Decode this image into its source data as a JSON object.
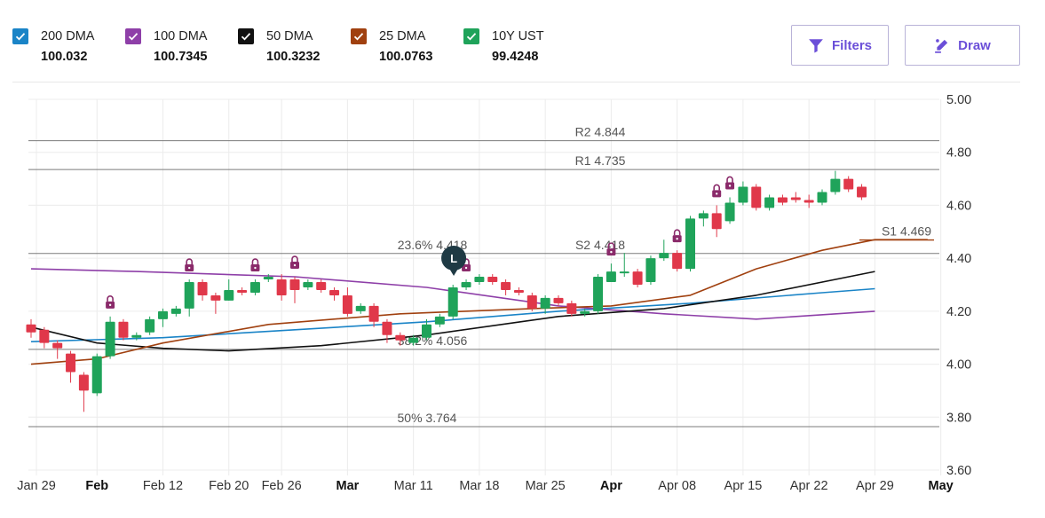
{
  "legend": [
    {
      "name": "200 DMA",
      "value": "100.032",
      "color": "#1a84c7"
    },
    {
      "name": "100 DMA",
      "value": "100.7345",
      "color": "#8e3fa8"
    },
    {
      "name": "50 DMA",
      "value": "100.3232",
      "color": "#111111"
    },
    {
      "name": "25 DMA",
      "value": "100.0763",
      "color": "#a0400f"
    },
    {
      "name": "10Y UST",
      "value": "99.4248",
      "color": "#1fa35a"
    }
  ],
  "buttons": {
    "filters": "Filters",
    "draw": "Draw"
  },
  "colors": {
    "up": "#1fa35a",
    "down": "#e0384a",
    "lock": "#8a2a6a",
    "accent": "#6b4fd8",
    "marker": "#1f3a44"
  },
  "chart_data": {
    "type": "candlestick",
    "y_ticks": [
      "5.00",
      "4.80",
      "4.60",
      "4.40",
      "4.20",
      "4.00",
      "3.80",
      "3.60"
    ],
    "ylim": [
      3.6,
      5.0
    ],
    "x_ticks": [
      {
        "label": "Jan 29",
        "bold": false
      },
      {
        "label": "Feb",
        "bold": true
      },
      {
        "label": "Feb 12",
        "bold": false
      },
      {
        "label": "Feb 20",
        "bold": false
      },
      {
        "label": "Feb 26",
        "bold": false
      },
      {
        "label": "Mar",
        "bold": true
      },
      {
        "label": "Mar 11",
        "bold": false
      },
      {
        "label": "Mar 18",
        "bold": false
      },
      {
        "label": "Mar 25",
        "bold": false
      },
      {
        "label": "Apr",
        "bold": true
      },
      {
        "label": "Apr 08",
        "bold": false
      },
      {
        "label": "Apr 15",
        "bold": false
      },
      {
        "label": "Apr 22",
        "bold": false
      },
      {
        "label": "Apr 29",
        "bold": false
      },
      {
        "label": "May",
        "bold": true
      }
    ],
    "x_tick_index": [
      0,
      5,
      10,
      15,
      19,
      24,
      29,
      34,
      39,
      44,
      49,
      54,
      59,
      64,
      69
    ],
    "levels": [
      {
        "label": "R2 4.844",
        "value": 4.844
      },
      {
        "label": "R1 4.735",
        "value": 4.735
      },
      {
        "label": "23.6% 4.418",
        "value": 4.418
      },
      {
        "label": "S2 4.418",
        "value": 4.418
      },
      {
        "label": "S1 4.469",
        "value": 4.469
      },
      {
        "label": "38.2% 4.056",
        "value": 4.056
      },
      {
        "label": "50% 3.764",
        "value": 3.764
      }
    ],
    "candles": [
      [
        4.15,
        4.12,
        4.17,
        4.1
      ],
      [
        4.13,
        4.08,
        4.14,
        4.06
      ],
      [
        4.08,
        4.06,
        4.09,
        4.02
      ],
      [
        4.04,
        3.97,
        4.05,
        3.93
      ],
      [
        3.96,
        3.9,
        3.97,
        3.82
      ],
      [
        3.89,
        4.03,
        4.04,
        3.88
      ],
      [
        4.03,
        4.16,
        4.18,
        4.02
      ],
      [
        4.16,
        4.1,
        4.17,
        4.09
      ],
      [
        4.1,
        4.11,
        4.12,
        4.09
      ],
      [
        4.12,
        4.17,
        4.18,
        4.11
      ],
      [
        4.17,
        4.2,
        4.21,
        4.14
      ],
      [
        4.19,
        4.21,
        4.22,
        4.18
      ],
      [
        4.21,
        4.31,
        4.32,
        4.18
      ],
      [
        4.31,
        4.26,
        4.32,
        4.24
      ],
      [
        4.26,
        4.24,
        4.27,
        4.19
      ],
      [
        4.24,
        4.28,
        4.32,
        4.24
      ],
      [
        4.28,
        4.27,
        4.29,
        4.26
      ],
      [
        4.27,
        4.31,
        4.32,
        4.26
      ],
      [
        4.32,
        4.33,
        4.34,
        4.31
      ],
      [
        4.32,
        4.26,
        4.34,
        4.24
      ],
      [
        4.32,
        4.28,
        4.33,
        4.23
      ],
      [
        4.29,
        4.31,
        4.32,
        4.28
      ],
      [
        4.31,
        4.28,
        4.32,
        4.27
      ],
      [
        4.28,
        4.26,
        4.29,
        4.24
      ],
      [
        4.26,
        4.19,
        4.29,
        4.18
      ],
      [
        4.2,
        4.22,
        4.23,
        4.19
      ],
      [
        4.22,
        4.16,
        4.23,
        4.14
      ],
      [
        4.16,
        4.11,
        4.17,
        4.08
      ],
      [
        4.11,
        4.09,
        4.12,
        4.07
      ],
      [
        4.08,
        4.1,
        4.11,
        4.07
      ],
      [
        4.1,
        4.15,
        4.17,
        4.09
      ],
      [
        4.15,
        4.18,
        4.19,
        4.14
      ],
      [
        4.18,
        4.29,
        4.3,
        4.17
      ],
      [
        4.29,
        4.31,
        4.32,
        4.28
      ],
      [
        4.31,
        4.33,
        4.34,
        4.3
      ],
      [
        4.33,
        4.31,
        4.34,
        4.3
      ],
      [
        4.31,
        4.28,
        4.32,
        4.26
      ],
      [
        4.28,
        4.27,
        4.29,
        4.26
      ],
      [
        4.26,
        4.21,
        4.27,
        4.2
      ],
      [
        4.21,
        4.25,
        4.26,
        4.19
      ],
      [
        4.25,
        4.23,
        4.26,
        4.22
      ],
      [
        4.23,
        4.19,
        4.24,
        4.18
      ],
      [
        4.19,
        4.2,
        4.21,
        4.18
      ],
      [
        4.2,
        4.33,
        4.34,
        4.19
      ],
      [
        4.31,
        4.35,
        4.38,
        4.31
      ],
      [
        4.35,
        4.35,
        4.42,
        4.33
      ],
      [
        4.35,
        4.3,
        4.36,
        4.29
      ],
      [
        4.31,
        4.4,
        4.41,
        4.3
      ],
      [
        4.4,
        4.42,
        4.47,
        4.39
      ],
      [
        4.42,
        4.36,
        4.43,
        4.35
      ],
      [
        4.36,
        4.55,
        4.56,
        4.35
      ],
      [
        4.55,
        4.57,
        4.58,
        4.52
      ],
      [
        4.57,
        4.51,
        4.6,
        4.48
      ],
      [
        4.54,
        4.61,
        4.63,
        4.53
      ],
      [
        4.61,
        4.67,
        4.69,
        4.6
      ],
      [
        4.67,
        4.59,
        4.68,
        4.58
      ],
      [
        4.59,
        4.63,
        4.64,
        4.58
      ],
      [
        4.63,
        4.61,
        4.64,
        4.6
      ],
      [
        4.63,
        4.62,
        4.65,
        4.61
      ],
      [
        4.62,
        4.61,
        4.64,
        4.59
      ],
      [
        4.61,
        4.65,
        4.66,
        4.6
      ],
      [
        4.65,
        4.7,
        4.73,
        4.64
      ],
      [
        4.7,
        4.66,
        4.71,
        4.65
      ],
      [
        4.67,
        4.63,
        4.68,
        4.62
      ]
    ],
    "lock_index": [
      6,
      12,
      17,
      20,
      33,
      44,
      49,
      52,
      53
    ],
    "marker": {
      "index": 33,
      "label": "L"
    },
    "series": [
      {
        "name": "200 DMA",
        "color": "#1a84c7",
        "points": [
          [
            0,
            4.085
          ],
          [
            10,
            4.1
          ],
          [
            20,
            4.13
          ],
          [
            30,
            4.16
          ],
          [
            40,
            4.2
          ],
          [
            50,
            4.23
          ],
          [
            60,
            4.27
          ],
          [
            64,
            4.285
          ]
        ]
      },
      {
        "name": "100 DMA",
        "color": "#8e3fa8",
        "points": [
          [
            0,
            4.36
          ],
          [
            8,
            4.35
          ],
          [
            20,
            4.33
          ],
          [
            30,
            4.29
          ],
          [
            40,
            4.22
          ],
          [
            48,
            4.19
          ],
          [
            55,
            4.17
          ],
          [
            64,
            4.2
          ]
        ]
      },
      {
        "name": "50 DMA",
        "color": "#111111",
        "points": [
          [
            0,
            4.14
          ],
          [
            5,
            4.08
          ],
          [
            10,
            4.06
          ],
          [
            15,
            4.05
          ],
          [
            22,
            4.07
          ],
          [
            30,
            4.11
          ],
          [
            40,
            4.18
          ],
          [
            48,
            4.21
          ],
          [
            55,
            4.26
          ],
          [
            64,
            4.35
          ]
        ]
      },
      {
        "name": "25 DMA",
        "color": "#a0400f",
        "points": [
          [
            0,
            4.0
          ],
          [
            5,
            4.02
          ],
          [
            10,
            4.08
          ],
          [
            18,
            4.15
          ],
          [
            28,
            4.19
          ],
          [
            38,
            4.21
          ],
          [
            44,
            4.22
          ],
          [
            50,
            4.26
          ],
          [
            55,
            4.36
          ],
          [
            60,
            4.43
          ],
          [
            64,
            4.47
          ],
          [
            68,
            4.47
          ]
        ]
      }
    ]
  }
}
